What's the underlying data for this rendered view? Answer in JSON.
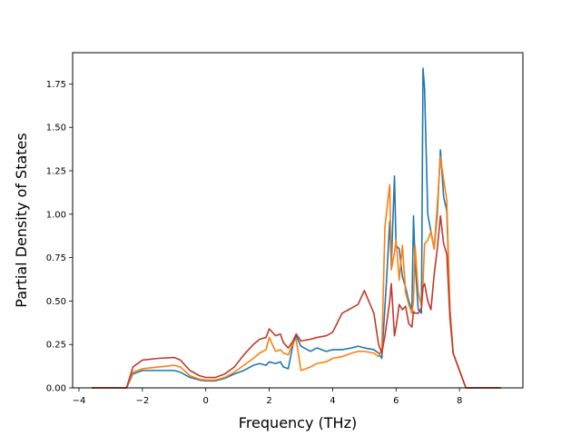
{
  "chart_data": {
    "type": "line",
    "title": "",
    "xlabel": "Frequency (THz)",
    "ylabel": "Partial Density of States",
    "xlim": [
      -4.2,
      10.0
    ],
    "ylim": [
      0,
      1.93
    ],
    "xticks": [
      -4,
      -2,
      0,
      2,
      4,
      6,
      8
    ],
    "xtick_labels": [
      "−4",
      "−2",
      "0",
      "2",
      "4",
      "6",
      "8"
    ],
    "yticks": [
      0,
      0.25,
      0.5,
      0.75,
      1.0,
      1.25,
      1.5,
      1.75
    ],
    "ytick_labels": [
      "0.00",
      "0.25",
      "0.50",
      "0.75",
      "1.00",
      "1.25",
      "1.50",
      "1.75"
    ],
    "grid": false,
    "legend": "none",
    "series": [
      {
        "color": "#1f77b4",
        "points": [
          [
            -3.6,
            0
          ],
          [
            -2.5,
            0
          ],
          [
            -2.3,
            0.08
          ],
          [
            -2.0,
            0.1
          ],
          [
            -1.5,
            0.1
          ],
          [
            -1.0,
            0.1
          ],
          [
            -0.8,
            0.09
          ],
          [
            -0.5,
            0.06
          ],
          [
            -0.2,
            0.045
          ],
          [
            0.0,
            0.04
          ],
          [
            0.3,
            0.04
          ],
          [
            0.6,
            0.055
          ],
          [
            0.9,
            0.08
          ],
          [
            1.2,
            0.1
          ],
          [
            1.5,
            0.13
          ],
          [
            1.7,
            0.14
          ],
          [
            1.9,
            0.13
          ],
          [
            2.0,
            0.15
          ],
          [
            2.2,
            0.14
          ],
          [
            2.35,
            0.15
          ],
          [
            2.45,
            0.12
          ],
          [
            2.6,
            0.11
          ],
          [
            2.75,
            0.25
          ],
          [
            2.85,
            0.3
          ],
          [
            3.0,
            0.24
          ],
          [
            3.3,
            0.21
          ],
          [
            3.5,
            0.23
          ],
          [
            3.8,
            0.21
          ],
          [
            4.0,
            0.22
          ],
          [
            4.3,
            0.22
          ],
          [
            4.6,
            0.23
          ],
          [
            4.8,
            0.24
          ],
          [
            5.0,
            0.23
          ],
          [
            5.3,
            0.22
          ],
          [
            5.45,
            0.2
          ],
          [
            5.55,
            0.17
          ],
          [
            5.7,
            0.62
          ],
          [
            5.8,
            0.96
          ],
          [
            5.85,
            0.7
          ],
          [
            5.95,
            1.22
          ],
          [
            6.0,
            0.82
          ],
          [
            6.1,
            0.8
          ],
          [
            6.2,
            0.64
          ],
          [
            6.3,
            0.58
          ],
          [
            6.4,
            0.5
          ],
          [
            6.5,
            0.45
          ],
          [
            6.55,
            0.99
          ],
          [
            6.6,
            0.72
          ],
          [
            6.7,
            0.45
          ],
          [
            6.8,
            0.43
          ],
          [
            6.85,
            1.84
          ],
          [
            6.9,
            1.72
          ],
          [
            7.0,
            1.0
          ],
          [
            7.1,
            0.9
          ],
          [
            7.2,
            0.8
          ],
          [
            7.3,
            1.0
          ],
          [
            7.4,
            1.37
          ],
          [
            7.5,
            1.1
          ],
          [
            7.6,
            1.02
          ],
          [
            7.7,
            0.45
          ],
          [
            7.8,
            0.2
          ],
          [
            8.0,
            0.1
          ],
          [
            8.2,
            0.0
          ],
          [
            9.3,
            0.0
          ]
        ]
      },
      {
        "color": "#ff7f0e",
        "points": [
          [
            -3.6,
            0
          ],
          [
            -2.5,
            0
          ],
          [
            -2.3,
            0.09
          ],
          [
            -2.0,
            0.11
          ],
          [
            -1.5,
            0.12
          ],
          [
            -1.0,
            0.13
          ],
          [
            -0.8,
            0.12
          ],
          [
            -0.5,
            0.07
          ],
          [
            -0.2,
            0.05
          ],
          [
            0.0,
            0.045
          ],
          [
            0.3,
            0.045
          ],
          [
            0.6,
            0.06
          ],
          [
            0.9,
            0.09
          ],
          [
            1.2,
            0.13
          ],
          [
            1.5,
            0.17
          ],
          [
            1.7,
            0.2
          ],
          [
            1.9,
            0.22
          ],
          [
            2.0,
            0.29
          ],
          [
            2.2,
            0.21
          ],
          [
            2.35,
            0.22
          ],
          [
            2.45,
            0.2
          ],
          [
            2.6,
            0.19
          ],
          [
            2.75,
            0.26
          ],
          [
            2.85,
            0.28
          ],
          [
            3.0,
            0.1
          ],
          [
            3.3,
            0.12
          ],
          [
            3.5,
            0.14
          ],
          [
            3.8,
            0.15
          ],
          [
            4.0,
            0.17
          ],
          [
            4.3,
            0.18
          ],
          [
            4.6,
            0.2
          ],
          [
            4.8,
            0.21
          ],
          [
            5.0,
            0.21
          ],
          [
            5.3,
            0.2
          ],
          [
            5.45,
            0.18
          ],
          [
            5.55,
            0.22
          ],
          [
            5.65,
            0.93
          ],
          [
            5.8,
            1.17
          ],
          [
            5.85,
            0.68
          ],
          [
            5.95,
            0.78
          ],
          [
            6.0,
            0.85
          ],
          [
            6.1,
            0.62
          ],
          [
            6.2,
            0.82
          ],
          [
            6.3,
            0.55
          ],
          [
            6.4,
            0.48
          ],
          [
            6.5,
            0.43
          ],
          [
            6.55,
            0.5
          ],
          [
            6.6,
            0.82
          ],
          [
            6.7,
            0.55
          ],
          [
            6.8,
            0.47
          ],
          [
            6.85,
            0.6
          ],
          [
            6.9,
            0.83
          ],
          [
            7.0,
            0.85
          ],
          [
            7.1,
            0.9
          ],
          [
            7.2,
            0.8
          ],
          [
            7.3,
            1.05
          ],
          [
            7.4,
            1.33
          ],
          [
            7.5,
            1.2
          ],
          [
            7.6,
            1.08
          ],
          [
            7.7,
            0.45
          ],
          [
            7.8,
            0.2
          ],
          [
            8.0,
            0.1
          ],
          [
            8.2,
            0.0
          ],
          [
            9.3,
            0.0
          ]
        ]
      },
      {
        "color": "#c0392b",
        "points": [
          [
            -3.6,
            0
          ],
          [
            -2.5,
            0
          ],
          [
            -2.3,
            0.12
          ],
          [
            -2.0,
            0.16
          ],
          [
            -1.5,
            0.17
          ],
          [
            -1.0,
            0.175
          ],
          [
            -0.8,
            0.16
          ],
          [
            -0.5,
            0.1
          ],
          [
            -0.2,
            0.07
          ],
          [
            0.0,
            0.06
          ],
          [
            0.3,
            0.06
          ],
          [
            0.6,
            0.08
          ],
          [
            0.9,
            0.12
          ],
          [
            1.2,
            0.19
          ],
          [
            1.5,
            0.25
          ],
          [
            1.7,
            0.28
          ],
          [
            1.9,
            0.29
          ],
          [
            2.0,
            0.34
          ],
          [
            2.2,
            0.3
          ],
          [
            2.35,
            0.31
          ],
          [
            2.45,
            0.26
          ],
          [
            2.6,
            0.23
          ],
          [
            2.75,
            0.27
          ],
          [
            2.85,
            0.31
          ],
          [
            3.0,
            0.27
          ],
          [
            3.3,
            0.28
          ],
          [
            3.5,
            0.29
          ],
          [
            3.8,
            0.3
          ],
          [
            4.0,
            0.32
          ],
          [
            4.3,
            0.43
          ],
          [
            4.6,
            0.46
          ],
          [
            4.8,
            0.48
          ],
          [
            5.0,
            0.56
          ],
          [
            5.3,
            0.43
          ],
          [
            5.45,
            0.25
          ],
          [
            5.55,
            0.2
          ],
          [
            5.65,
            0.3
          ],
          [
            5.8,
            0.5
          ],
          [
            5.85,
            0.6
          ],
          [
            5.95,
            0.3
          ],
          [
            6.0,
            0.35
          ],
          [
            6.1,
            0.48
          ],
          [
            6.2,
            0.45
          ],
          [
            6.3,
            0.47
          ],
          [
            6.4,
            0.37
          ],
          [
            6.5,
            0.35
          ],
          [
            6.55,
            0.44
          ],
          [
            6.6,
            0.43
          ],
          [
            6.7,
            0.43
          ],
          [
            6.8,
            0.46
          ],
          [
            6.85,
            0.58
          ],
          [
            6.9,
            0.6
          ],
          [
            7.0,
            0.5
          ],
          [
            7.1,
            0.45
          ],
          [
            7.2,
            0.65
          ],
          [
            7.3,
            0.8
          ],
          [
            7.4,
            0.99
          ],
          [
            7.5,
            0.83
          ],
          [
            7.6,
            0.77
          ],
          [
            7.7,
            0.4
          ],
          [
            7.8,
            0.2
          ],
          [
            8.0,
            0.1
          ],
          [
            8.2,
            0.0
          ],
          [
            9.3,
            0.0
          ]
        ]
      }
    ]
  }
}
